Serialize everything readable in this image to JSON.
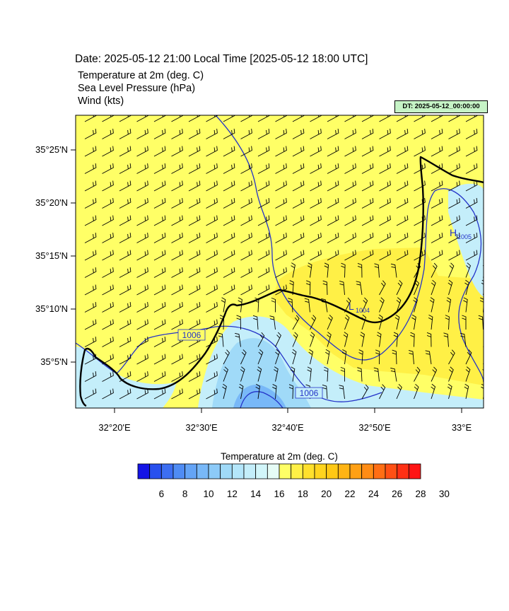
{
  "header": {
    "title": "Date: 2025-05-12  21:00 Local Time [2025-05-12  18:00 UTC]",
    "fields": [
      "Temperature at 2m   (deg. C)",
      "Sea Level Pressure   (hPa)",
      "Wind   (kts)"
    ],
    "dt_badge": "DT: 2025-05-12_00:00:00"
  },
  "map": {
    "lat_labels": [
      "35°25'N",
      "35°20'N",
      "35°15'N",
      "35°10'N",
      "35°5'N"
    ],
    "lon_labels": [
      "32°20'E",
      "32°30'E",
      "32°40'E",
      "32°50'E",
      "33°E"
    ],
    "pressure_labels": [
      "1006",
      "1006"
    ],
    "pressure_centers": [
      {
        "letter": "H",
        "value": "1005"
      },
      {
        "letter": "L",
        "value": "1004"
      }
    ]
  },
  "colorbar": {
    "title": "Temperature at 2m  (deg. C)",
    "ticks": [
      "6",
      "8",
      "10",
      "12",
      "14",
      "16",
      "18",
      "20",
      "22",
      "24",
      "26",
      "28",
      "30"
    ],
    "colors": [
      "#1414e6",
      "#2850ee",
      "#3c6ef2",
      "#4f8cf4",
      "#64a4f6",
      "#78b8f8",
      "#8ccaf8",
      "#a0daf8",
      "#b4e6fa",
      "#c4eefa",
      "#d2f6fa",
      "#e6fcf6",
      "#ffff66",
      "#fff046",
      "#ffe02c",
      "#ffd41e",
      "#ffc814",
      "#ffb414",
      "#ffa014",
      "#ff8c14",
      "#ff6e14",
      "#ff5014",
      "#ff3014",
      "#ff1414"
    ]
  }
}
